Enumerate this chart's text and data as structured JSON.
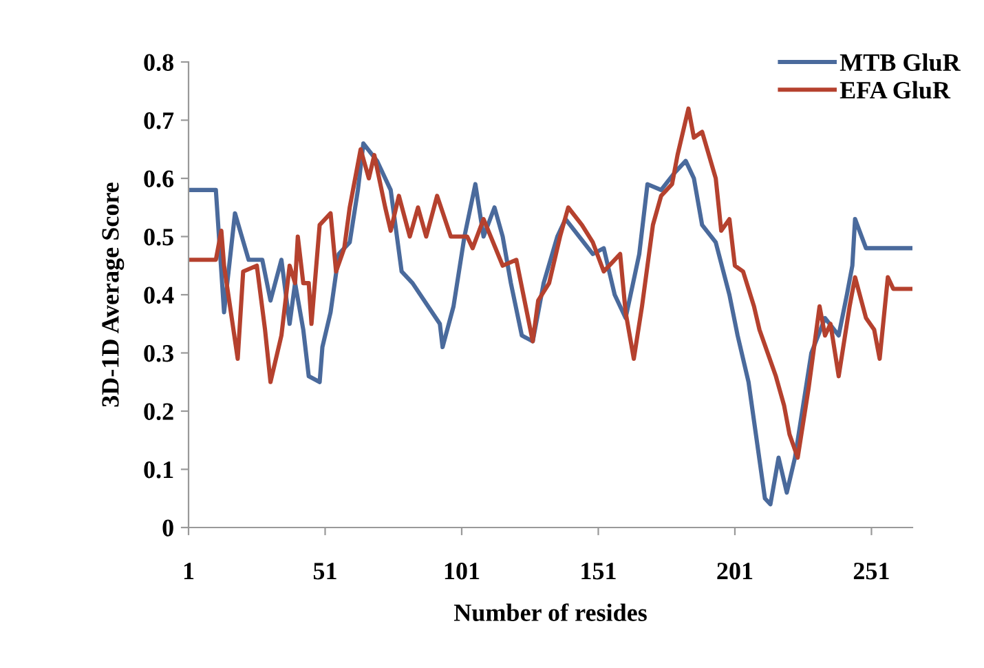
{
  "chart_data": {
    "type": "line",
    "xlabel": "Number of resides",
    "ylabel": "3D-1D Average Score",
    "xlim": [
      1,
      266
    ],
    "xticks": [
      1,
      51,
      101,
      151,
      201,
      251
    ],
    "ylim": [
      0,
      0.8
    ],
    "yticks": [
      0,
      0.1,
      0.2,
      0.3,
      0.4,
      0.5,
      0.6,
      0.7,
      0.8
    ],
    "grid": false,
    "legend": "top right",
    "marker": "none",
    "line_style": "solid",
    "series": [
      {
        "name": "MTB GluR",
        "color": "#4a6a9c",
        "x": [
          1,
          11,
          14,
          18,
          23,
          28,
          31,
          35,
          38,
          40,
          43,
          45,
          49,
          50,
          53,
          56,
          60,
          63,
          65,
          70,
          75,
          79,
          83,
          93,
          94,
          98,
          102,
          106,
          109,
          113,
          116,
          119,
          123,
          127,
          131,
          136,
          139,
          149,
          153,
          157,
          161,
          166,
          169,
          174,
          179,
          183,
          186,
          189,
          194,
          199,
          202,
          206,
          209,
          212,
          214,
          217,
          220,
          223,
          229,
          234,
          239,
          242,
          244,
          245,
          249,
          260,
          266
        ],
        "values": [
          0.58,
          0.58,
          0.37,
          0.54,
          0.46,
          0.46,
          0.39,
          0.46,
          0.35,
          0.42,
          0.34,
          0.26,
          0.25,
          0.31,
          0.37,
          0.47,
          0.49,
          0.58,
          0.66,
          0.63,
          0.58,
          0.44,
          0.42,
          0.35,
          0.31,
          0.38,
          0.5,
          0.59,
          0.5,
          0.55,
          0.5,
          0.42,
          0.33,
          0.32,
          0.42,
          0.5,
          0.53,
          0.47,
          0.48,
          0.4,
          0.36,
          0.47,
          0.59,
          0.58,
          0.61,
          0.63,
          0.6,
          0.52,
          0.49,
          0.4,
          0.33,
          0.25,
          0.15,
          0.05,
          0.04,
          0.12,
          0.06,
          0.12,
          0.3,
          0.36,
          0.33,
          0.4,
          0.45,
          0.53,
          0.48,
          0.48,
          0.48
        ]
      },
      {
        "name": "EFA GluR",
        "color": "#b5412e",
        "x": [
          1,
          11,
          13,
          14,
          19,
          21,
          26,
          29,
          31,
          35,
          38,
          40,
          41,
          43,
          45,
          46,
          49,
          53,
          55,
          58,
          60,
          64,
          67,
          69,
          73,
          75,
          78,
          82,
          85,
          88,
          92,
          97,
          103,
          105,
          109,
          116,
          121,
          127,
          129,
          133,
          137,
          140,
          145,
          149,
          153,
          159,
          161,
          164,
          167,
          171,
          174,
          178,
          180,
          184,
          186,
          189,
          194,
          196,
          199,
          201,
          204,
          208,
          210,
          216,
          219,
          221,
          224,
          228,
          232,
          234,
          236,
          239,
          243,
          245,
          249,
          252,
          254,
          257,
          259,
          266
        ],
        "values": [
          0.46,
          0.46,
          0.51,
          0.45,
          0.29,
          0.44,
          0.45,
          0.34,
          0.25,
          0.33,
          0.45,
          0.42,
          0.5,
          0.42,
          0.42,
          0.35,
          0.52,
          0.54,
          0.44,
          0.48,
          0.55,
          0.65,
          0.6,
          0.64,
          0.55,
          0.51,
          0.57,
          0.5,
          0.55,
          0.5,
          0.57,
          0.5,
          0.5,
          0.48,
          0.53,
          0.45,
          0.46,
          0.32,
          0.39,
          0.42,
          0.5,
          0.55,
          0.52,
          0.49,
          0.44,
          0.47,
          0.37,
          0.29,
          0.38,
          0.52,
          0.57,
          0.59,
          0.64,
          0.72,
          0.67,
          0.68,
          0.6,
          0.51,
          0.53,
          0.45,
          0.44,
          0.38,
          0.34,
          0.26,
          0.21,
          0.16,
          0.12,
          0.24,
          0.38,
          0.33,
          0.35,
          0.26,
          0.38,
          0.43,
          0.36,
          0.34,
          0.29,
          0.43,
          0.41,
          0.41
        ]
      }
    ]
  }
}
